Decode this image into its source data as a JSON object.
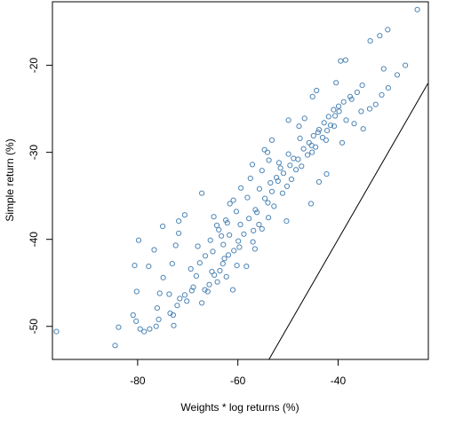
{
  "chart_data": {
    "type": "scatter",
    "title": "",
    "xlabel": "Weights * log returns (%)",
    "ylabel": "Simple return (%)",
    "xlim": [
      -97,
      -22
    ],
    "ylim": [
      -53.8,
      -12.7
    ],
    "xticks": [
      -80,
      -60,
      -40
    ],
    "yticks": [
      -50,
      -40,
      -30,
      -20
    ],
    "grid": false,
    "legend": "none",
    "point_color": "#4f86b6",
    "line": {
      "description": "y = x reference line",
      "from": [
        -54.3,
        -54.3
      ],
      "to": [
        -22.1,
        -22.1
      ],
      "color": "#000000"
    },
    "series": [
      {
        "points": [
          [
            -96.2,
            -50.6
          ],
          [
            -84.5,
            -52.2
          ],
          [
            -83.8,
            -50.1
          ],
          [
            -80.9,
            -48.7
          ],
          [
            -80.3,
            -49.4
          ],
          [
            -79.8,
            -40.1
          ],
          [
            -79.5,
            -50.3
          ],
          [
            -78.7,
            -50.6
          ],
          [
            -80.6,
            -43.0
          ],
          [
            -80.2,
            -46.0
          ],
          [
            -77.6,
            -50.3
          ],
          [
            -76.3,
            -50.0
          ],
          [
            -75.8,
            -49.2
          ],
          [
            -76.1,
            -47.9
          ],
          [
            -75.6,
            -46.2
          ],
          [
            -77.8,
            -43.1
          ],
          [
            -76.7,
            -41.2
          ],
          [
            -75.0,
            -38.5
          ],
          [
            -73.1,
            -42.8
          ],
          [
            -72.4,
            -40.7
          ],
          [
            -71.8,
            -39.3
          ],
          [
            -74.9,
            -44.4
          ],
          [
            -73.7,
            -46.3
          ],
          [
            -72.8,
            -49.9
          ],
          [
            -72.9,
            -48.7
          ],
          [
            -72.1,
            -47.6
          ],
          [
            -71.6,
            -46.8
          ],
          [
            -70.6,
            -46.4
          ],
          [
            -71.8,
            -37.9
          ],
          [
            -70.6,
            -37.2
          ],
          [
            -67.2,
            -34.7
          ],
          [
            -64.8,
            -37.4
          ],
          [
            -68.0,
            -40.8
          ],
          [
            -66.5,
            -41.9
          ],
          [
            -68.9,
            -45.5
          ],
          [
            -67.2,
            -47.3
          ],
          [
            -69.4,
            -43.4
          ],
          [
            -65.2,
            -43.7
          ],
          [
            -63.8,
            -38.9
          ],
          [
            -62.4,
            -37.8
          ],
          [
            -60.9,
            -35.5
          ],
          [
            -61.7,
            -39.5
          ],
          [
            -63.0,
            -42.8
          ],
          [
            -64.1,
            -44.9
          ],
          [
            -66.0,
            -46.0
          ],
          [
            -62.3,
            -44.3
          ],
          [
            -61.0,
            -45.8
          ],
          [
            -62.9,
            -40.6
          ],
          [
            -59.5,
            -38.3
          ],
          [
            -57.5,
            -33.0
          ],
          [
            -55.2,
            -32.1
          ],
          [
            -54.7,
            -29.7
          ],
          [
            -53.8,
            -30.9
          ],
          [
            -56.5,
            -36.6
          ],
          [
            -55.8,
            -38.3
          ],
          [
            -56.6,
            -41.1
          ],
          [
            -58.3,
            -43.1
          ],
          [
            -57.0,
            -40.3
          ],
          [
            -59.7,
            -40.9
          ],
          [
            -60.2,
            -43.0
          ],
          [
            -54.0,
            -35.8
          ],
          [
            -52.3,
            -32.9
          ],
          [
            -51.5,
            -31.8
          ],
          [
            -50.3,
            -37.9
          ],
          [
            -48.9,
            -30.7
          ],
          [
            -47.8,
            -27.0
          ],
          [
            -46.7,
            -26.1
          ],
          [
            -45.3,
            -29.2
          ],
          [
            -44.0,
            -27.7
          ],
          [
            -42.4,
            -28.6
          ],
          [
            -43.8,
            -33.4
          ],
          [
            -45.4,
            -35.9
          ],
          [
            -42.3,
            -32.5
          ],
          [
            -40.8,
            -27.0
          ],
          [
            -39.2,
            -28.9
          ],
          [
            -38.4,
            -26.3
          ],
          [
            -37.3,
            -23.9
          ],
          [
            -36.8,
            -26.7
          ],
          [
            -35.4,
            -25.3
          ],
          [
            -35.0,
            -27.3
          ],
          [
            -33.7,
            -25.0
          ],
          [
            -32.5,
            -24.5
          ],
          [
            -31.3,
            -23.4
          ],
          [
            -30.0,
            -22.6
          ],
          [
            -28.2,
            -21.1
          ],
          [
            -26.6,
            -20.0
          ],
          [
            -24.2,
            -13.6
          ],
          [
            -30.1,
            -15.9
          ],
          [
            -31.7,
            -16.6
          ],
          [
            -33.6,
            -17.2
          ],
          [
            -38.5,
            -19.4
          ],
          [
            -39.5,
            -19.5
          ],
          [
            -30.9,
            -20.4
          ],
          [
            -35.2,
            -22.3
          ],
          [
            -40.4,
            -22.0
          ],
          [
            -44.3,
            -22.9
          ],
          [
            -45.1,
            -23.6
          ],
          [
            -49.9,
            -26.3
          ],
          [
            -53.2,
            -28.6
          ],
          [
            -54.1,
            -30.0
          ],
          [
            -57.1,
            -31.4
          ],
          [
            -59.4,
            -34.1
          ],
          [
            -61.6,
            -35.9
          ],
          [
            -64.2,
            -38.4
          ],
          [
            -65.5,
            -40.1
          ],
          [
            -67.6,
            -42.7
          ],
          [
            -68.3,
            -44.2
          ],
          [
            -69.2,
            -45.9
          ],
          [
            -70.2,
            -47.1
          ],
          [
            -73.5,
            -48.5
          ],
          [
            -57.8,
            -37.6
          ],
          [
            -56.9,
            -39.0
          ],
          [
            -55.2,
            -38.8
          ],
          [
            -53.9,
            -37.5
          ],
          [
            -52.8,
            -36.2
          ],
          [
            -51.1,
            -34.7
          ],
          [
            -50.2,
            -33.9
          ],
          [
            -49.3,
            -33.1
          ],
          [
            -48.4,
            -32.0
          ],
          [
            -47.3,
            -31.6
          ],
          [
            -46.1,
            -30.3
          ],
          [
            -45.2,
            -30.0
          ],
          [
            -44.5,
            -29.4
          ],
          [
            -43.1,
            -28.3
          ],
          [
            -42.2,
            -27.5
          ],
          [
            -41.5,
            -26.9
          ],
          [
            -40.6,
            -25.8
          ],
          [
            -39.8,
            -25.3
          ],
          [
            -58.8,
            -39.4
          ],
          [
            -59.9,
            -40.2
          ],
          [
            -60.8,
            -41.3
          ],
          [
            -61.9,
            -41.8
          ],
          [
            -62.7,
            -42.2
          ],
          [
            -63.6,
            -43.6
          ],
          [
            -64.7,
            -44.1
          ],
          [
            -65.7,
            -45.2
          ],
          [
            -66.6,
            -45.8
          ],
          [
            -56.2,
            -36.9
          ],
          [
            -54.6,
            -35.3
          ],
          [
            -53.2,
            -34.5
          ],
          [
            -52.0,
            -33.3
          ],
          [
            -50.9,
            -32.4
          ],
          [
            -49.6,
            -31.5
          ],
          [
            -48.0,
            -30.8
          ],
          [
            -46.9,
            -29.6
          ],
          [
            -45.8,
            -28.9
          ],
          [
            -44.9,
            -28.1
          ],
          [
            -43.8,
            -27.4
          ],
          [
            -42.8,
            -26.6
          ],
          [
            -41.9,
            -25.9
          ],
          [
            -40.9,
            -25.1
          ],
          [
            -39.9,
            -24.7
          ],
          [
            -38.9,
            -24.2
          ],
          [
            -37.6,
            -23.6
          ],
          [
            -36.2,
            -23.1
          ],
          [
            -55.7,
            -34.2
          ],
          [
            -53.5,
            -33.5
          ],
          [
            -51.8,
            -31.2
          ],
          [
            -49.9,
            -30.2
          ],
          [
            -47.6,
            -28.4
          ],
          [
            -58.1,
            -35.2
          ],
          [
            -60.3,
            -36.8
          ],
          [
            -62.1,
            -38.1
          ],
          [
            -63.3,
            -39.6
          ],
          [
            -65.0,
            -41.4
          ]
        ]
      }
    ]
  }
}
